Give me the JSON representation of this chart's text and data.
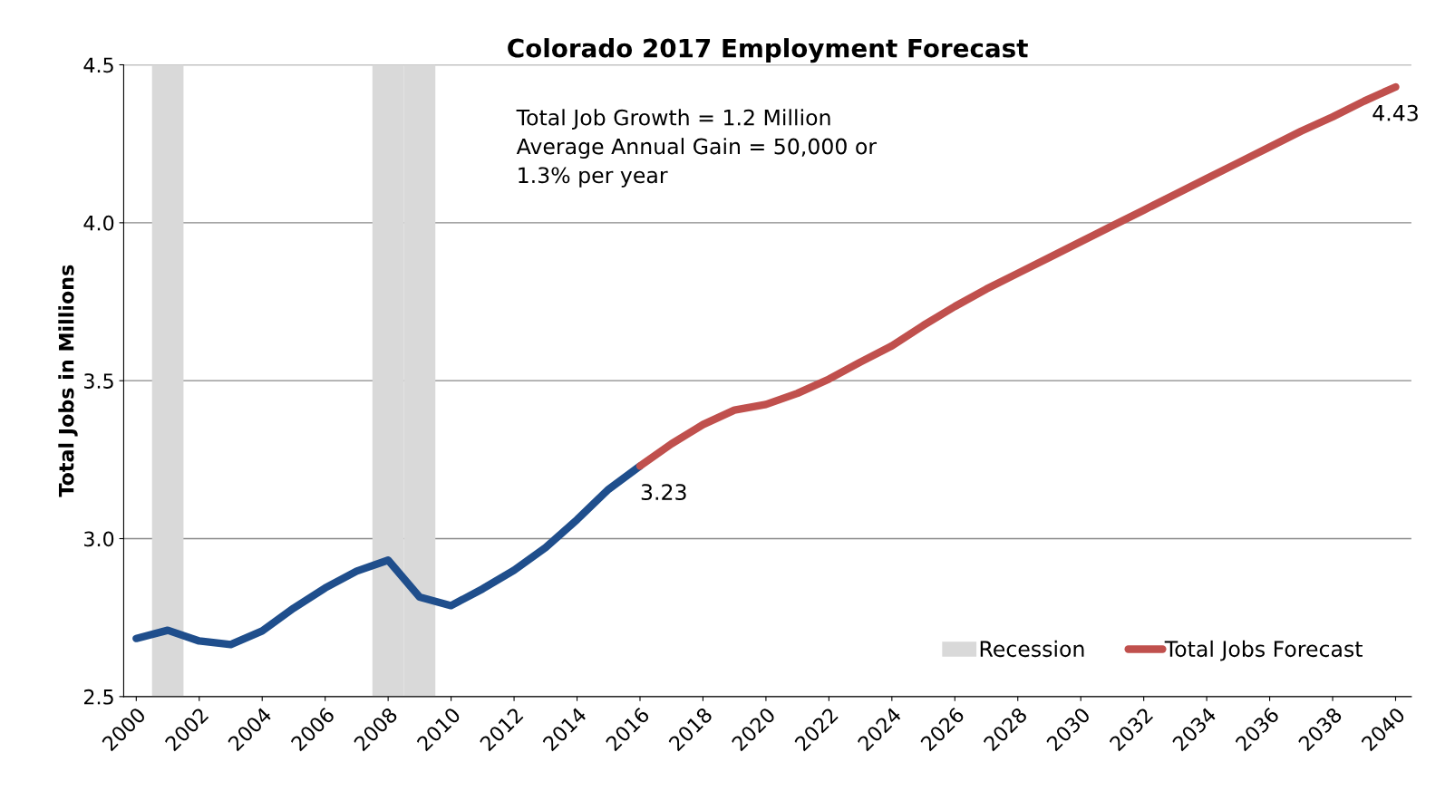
{
  "chart_data": {
    "type": "line",
    "title": "Colorado 2017 Employment Forecast",
    "ylabel": "Total Jobs in Millions",
    "series": [
      {
        "type": "bar",
        "name": "Recession",
        "color": "#d9d9d9",
        "x": [
          2001,
          2008,
          2009
        ],
        "values": [
          4.5,
          4.5,
          4.5
        ]
      },
      {
        "color": "#1f4e8c",
        "x": [
          2000,
          2001,
          2002,
          2003,
          2004,
          2005,
          2006,
          2007,
          2008,
          2009,
          2010,
          2011,
          2012,
          2013,
          2014,
          2015,
          2016
        ],
        "values": [
          2.684,
          2.71,
          2.676,
          2.665,
          2.708,
          2.78,
          2.844,
          2.897,
          2.932,
          2.815,
          2.788,
          2.841,
          2.9,
          2.972,
          3.06,
          3.156,
          3.23
        ]
      },
      {
        "name": "Total Jobs Forecast",
        "color": "#c0504d",
        "x": [
          2016,
          2017,
          2018,
          2019,
          2020,
          2021,
          2022,
          2023,
          2024,
          2025,
          2026,
          2027,
          2028,
          2029,
          2030,
          2031,
          2032,
          2033,
          2034,
          2035,
          2036,
          2037,
          2038,
          2039,
          2040
        ],
        "values": [
          3.23,
          3.3,
          3.361,
          3.407,
          3.425,
          3.46,
          3.505,
          3.559,
          3.61,
          3.675,
          3.735,
          3.79,
          3.84,
          3.89,
          3.94,
          3.99,
          4.04,
          4.09,
          4.14,
          4.19,
          4.24,
          4.29,
          4.335,
          4.385,
          4.43
        ]
      }
    ],
    "annotations": [
      "Total Job Growth = 1.2 Million\nAverage Annual Gain = 50,000 or\n1.3% per year",
      {
        "text": "3.23",
        "x": 2016,
        "y": 3.23
      },
      {
        "text": "4.43",
        "x": 2040,
        "y": 4.43
      }
    ],
    "xlim": [
      1999.6,
      2040.5
    ],
    "xticks": [
      2000,
      2002,
      2004,
      2006,
      2008,
      2010,
      2012,
      2014,
      2016,
      2018,
      2020,
      2022,
      2024,
      2026,
      2028,
      2030,
      2032,
      2034,
      2036,
      2038,
      2040
    ],
    "ylim": [
      2.5,
      4.5
    ],
    "yticks": [
      2.5,
      {
        "value": 3,
        "label": "3.0"
      },
      3.5,
      {
        "value": 4,
        "label": "4.0"
      },
      4.5
    ],
    "grid": "y",
    "legend": "bottom right",
    "line_style": "solid",
    "marker": "none"
  }
}
